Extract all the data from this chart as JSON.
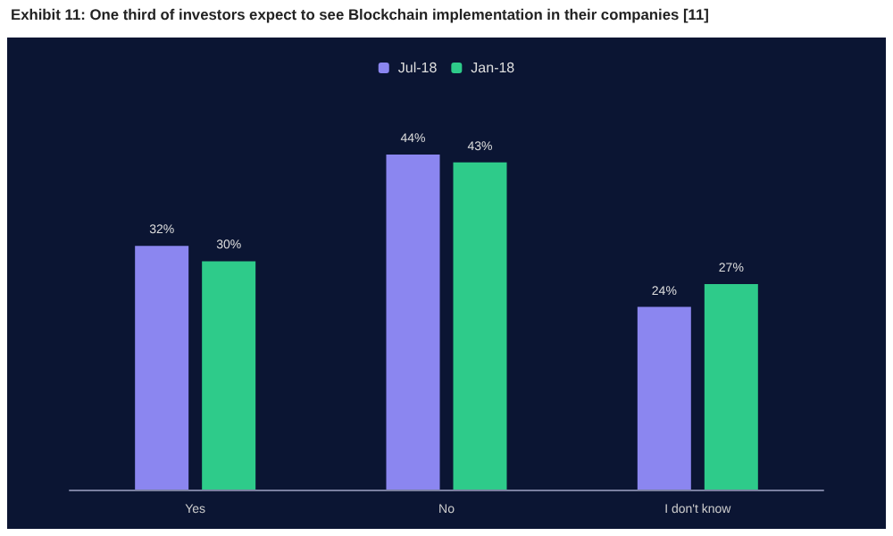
{
  "chart_data": {
    "type": "bar",
    "title": "Exhibit 11: One third of investors expect to see Blockchain implementation in their companies [11]",
    "categories": [
      "Yes",
      "No",
      "I don't know"
    ],
    "series": [
      {
        "name": "Jul-18",
        "color": "#8b86f0",
        "values": [
          32,
          44,
          24
        ],
        "value_labels": [
          "32%",
          "44%",
          "24%"
        ]
      },
      {
        "name": "Jan-18",
        "color": "#2ecb8a",
        "values": [
          30,
          43,
          27
        ],
        "value_labels": [
          "30%",
          "43%",
          "27%"
        ]
      }
    ],
    "legend": "top"
  }
}
